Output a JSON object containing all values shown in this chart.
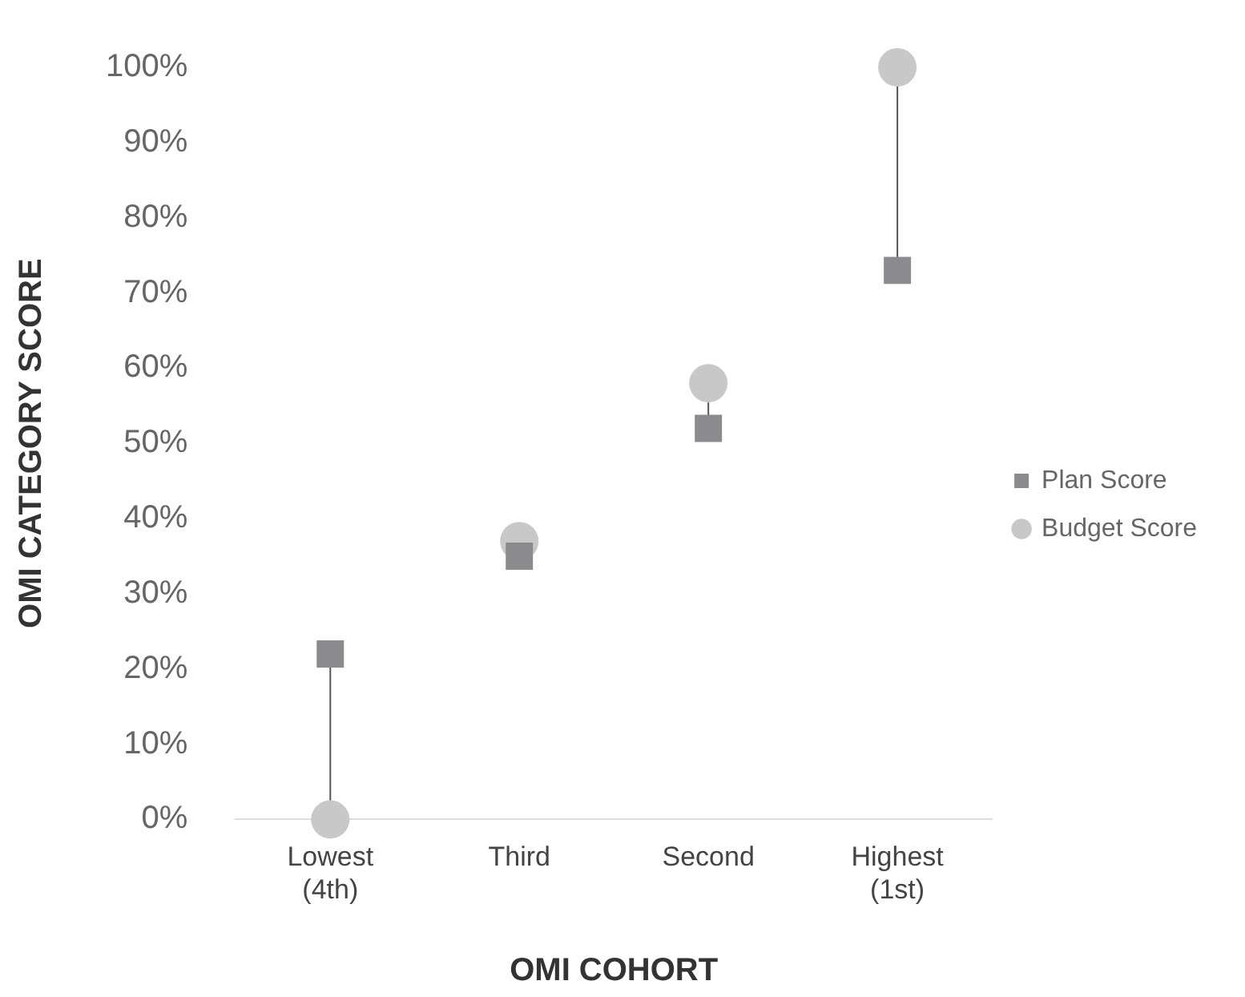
{
  "chart_data": {
    "type": "scatter",
    "xlabel": "OMI COHORT",
    "ylabel": "OMI CATEGORY SCORE",
    "categories": [
      "Lowest\n(4th)",
      "Third",
      "Second",
      "Highest\n(1st)"
    ],
    "series": [
      {
        "name": "Budget Score",
        "color": "#c8c8c9",
        "marker": "circle",
        "values": [
          0,
          37,
          58,
          100
        ]
      },
      {
        "name": "Plan Score",
        "color": "#8b8b8e",
        "marker": "square",
        "values": [
          22,
          35,
          52,
          73
        ]
      }
    ],
    "ylim": [
      0,
      100
    ],
    "yticks": [
      {
        "value": 0,
        "label": "0%"
      },
      {
        "value": 10,
        "label": "10%"
      },
      {
        "value": 20,
        "label": "20%"
      },
      {
        "value": 30,
        "label": "30%"
      },
      {
        "value": 40,
        "label": "40%"
      },
      {
        "value": 50,
        "label": "50%"
      },
      {
        "value": 60,
        "label": "60%"
      },
      {
        "value": 70,
        "label": "70%"
      },
      {
        "value": 80,
        "label": "80%"
      },
      {
        "value": 90,
        "label": "90%"
      },
      {
        "value": 100,
        "label": "100%"
      }
    ],
    "grid": false,
    "legend": "right"
  }
}
